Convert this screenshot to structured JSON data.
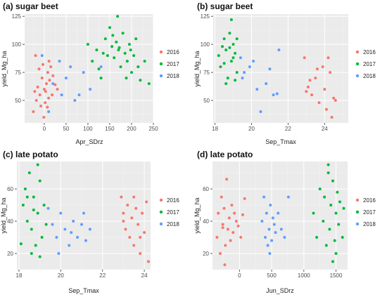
{
  "colors": {
    "2016": "#f8766d",
    "2017": "#00ba38",
    "2018": "#619cff",
    "panel_background": "#ebebeb",
    "grid_major": "#ffffff",
    "grid_minor": "#f4f4f4"
  },
  "chart_data": [
    {
      "type": "scatter",
      "title": "(a) sugar beet",
      "xlabel": "Apr_SDrz",
      "ylabel": "yield_Mg_ha",
      "xlim": [
        -45,
        250
      ],
      "ylim": [
        30,
        127
      ],
      "xticks": [
        0,
        50,
        100,
        150,
        200,
        250
      ],
      "yticks": [
        50,
        75,
        100,
        125
      ],
      "grid": true,
      "legend_position": "right",
      "legend": [
        "2016",
        "2017",
        "2018"
      ],
      "series": [
        {
          "name": "2016",
          "points": [
            [
              -20,
              90
            ],
            [
              -18,
              50
            ],
            [
              -15,
              62
            ],
            [
              -12,
              78
            ],
            [
              -10,
              55
            ],
            [
              -8,
              45
            ],
            [
              -5,
              70
            ],
            [
              -3,
              82
            ],
            [
              0,
              60
            ],
            [
              2,
              48
            ],
            [
              5,
              65
            ],
            [
              8,
              75
            ],
            [
              10,
              52
            ],
            [
              12,
              68
            ],
            [
              15,
              80
            ],
            [
              -22,
              58
            ],
            [
              18,
              55
            ],
            [
              20,
              72
            ],
            [
              25,
              64
            ],
            [
              -25,
              40
            ],
            [
              -1,
              35
            ],
            [
              30,
              60
            ],
            [
              3,
              58
            ],
            [
              7,
              44
            ],
            [
              11,
              85
            ]
          ]
        },
        {
          "name": "2017",
          "points": [
            [
              100,
              100
            ],
            [
              110,
              85
            ],
            [
              120,
              95
            ],
            [
              130,
              70
            ],
            [
              140,
              105
            ],
            [
              145,
              90
            ],
            [
              150,
              115
            ],
            [
              155,
              98
            ],
            [
              160,
              88
            ],
            [
              165,
              102
            ],
            [
              170,
              95
            ],
            [
              175,
              80
            ],
            [
              180,
              110
            ],
            [
              185,
              92
            ],
            [
              190,
              85
            ],
            [
              195,
              100
            ],
            [
              200,
              75
            ],
            [
              205,
              90
            ],
            [
              210,
              105
            ],
            [
              220,
              68
            ],
            [
              230,
              85
            ],
            [
              240,
              65
            ],
            [
              125,
              78
            ],
            [
              135,
              92
            ],
            [
              168,
              125
            ],
            [
              172,
              97
            ],
            [
              188,
              70
            ],
            [
              157,
              108
            ],
            [
              198,
              95
            ],
            [
              215,
              80
            ]
          ]
        },
        {
          "name": "2018",
          "points": [
            [
              -5,
              90
            ],
            [
              10,
              40
            ],
            [
              20,
              65
            ],
            [
              40,
              55
            ],
            [
              60,
              80
            ],
            [
              70,
              50
            ],
            [
              90,
              75
            ],
            [
              105,
              60
            ],
            [
              130,
              80
            ],
            [
              80,
              55
            ],
            [
              50,
              70
            ],
            [
              35,
              85
            ]
          ]
        }
      ]
    },
    {
      "type": "scatter",
      "title": "(b) sugar beet",
      "xlabel": "Sep_Tmax",
      "ylabel": "yield_Mg_ha",
      "xlim": [
        17.9,
        25.3
      ],
      "ylim": [
        30,
        127
      ],
      "xticks": [
        18,
        20,
        22,
        24
      ],
      "yticks": [
        50,
        75,
        100,
        125
      ],
      "grid": true,
      "legend_position": "right",
      "legend": [
        "2016",
        "2017",
        "2018"
      ],
      "series": [
        {
          "name": "2016",
          "points": [
            [
              22.9,
              88
            ],
            [
              23.1,
              62
            ],
            [
              23.3,
              55
            ],
            [
              23.5,
              70
            ],
            [
              23.7,
              48
            ],
            [
              23.9,
              80
            ],
            [
              24.0,
              60
            ],
            [
              24.1,
              42
            ],
            [
              24.3,
              75
            ],
            [
              24.5,
              52
            ],
            [
              23.2,
              68
            ],
            [
              23.6,
              78
            ],
            [
              24.2,
              88
            ],
            [
              24.4,
              35
            ],
            [
              24.6,
              50
            ],
            [
              23.0,
              58
            ]
          ]
        },
        {
          "name": "2017",
          "points": [
            [
              18.2,
              90
            ],
            [
              18.3,
              80
            ],
            [
              18.5,
              105
            ],
            [
              18.6,
              95
            ],
            [
              18.7,
              70
            ],
            [
              18.8,
              110
            ],
            [
              18.9,
              85
            ],
            [
              19.0,
              100
            ],
            [
              19.1,
              92
            ],
            [
              19.2,
              75
            ],
            [
              18.4,
              98
            ],
            [
              18.9,
              122
            ],
            [
              19.0,
              88
            ],
            [
              18.6,
              65
            ],
            [
              19.2,
              105
            ],
            [
              18.5,
              83
            ],
            [
              18.8,
              97
            ],
            [
              19.1,
              68
            ]
          ]
        },
        {
          "name": "2018",
          "points": [
            [
              19.4,
              88
            ],
            [
              19.6,
              75
            ],
            [
              19.9,
              80
            ],
            [
              20.3,
              60
            ],
            [
              20.5,
              40
            ],
            [
              20.8,
              65
            ],
            [
              21.0,
              78
            ],
            [
              21.2,
              55
            ],
            [
              21.5,
              95
            ],
            [
              19.5,
              70
            ],
            [
              20.1,
              85
            ],
            [
              21.4,
              56
            ]
          ]
        }
      ]
    },
    {
      "type": "scatter",
      "title": "(c) late potato",
      "xlabel": "Sep_Tmax",
      "ylabel": "yield_Mg_ha",
      "xlim": [
        17.9,
        24.3
      ],
      "ylim": [
        10,
        77
      ],
      "xticks": [
        18,
        20,
        22,
        24
      ],
      "yticks": [
        20,
        40,
        60
      ],
      "grid": true,
      "legend_position": "right",
      "legend": [
        "2016",
        "2017",
        "2018"
      ],
      "series": [
        {
          "name": "2016",
          "points": [
            [
              22.9,
              55
            ],
            [
              23.0,
              45
            ],
            [
              23.1,
              35
            ],
            [
              23.2,
              50
            ],
            [
              23.3,
              30
            ],
            [
              23.4,
              42
            ],
            [
              23.5,
              25
            ],
            [
              23.6,
              48
            ],
            [
              23.7,
              38
            ],
            [
              23.8,
              20
            ],
            [
              23.9,
              45
            ],
            [
              24.0,
              33
            ],
            [
              24.1,
              52
            ],
            [
              24.2,
              15
            ],
            [
              23.5,
              55
            ],
            [
              23.0,
              40
            ],
            [
              23.8,
              30
            ]
          ]
        },
        {
          "name": "2017",
          "points": [
            [
              18.1,
              26
            ],
            [
              18.2,
              50
            ],
            [
              18.3,
              60
            ],
            [
              18.4,
              40
            ],
            [
              18.5,
              70
            ],
            [
              18.6,
              35
            ],
            [
              18.7,
              55
            ],
            [
              18.8,
              25
            ],
            [
              18.9,
              45
            ],
            [
              19.0,
              65
            ],
            [
              19.1,
              30
            ],
            [
              19.2,
              50
            ],
            [
              19.3,
              38
            ],
            [
              18.6,
              20
            ],
            [
              18.9,
              75
            ],
            [
              18.4,
              55
            ],
            [
              19.0,
              18
            ],
            [
              18.7,
              47
            ]
          ]
        },
        {
          "name": "2018",
          "points": [
            [
              19.4,
              48
            ],
            [
              19.6,
              38
            ],
            [
              19.8,
              30
            ],
            [
              20.0,
              45
            ],
            [
              20.2,
              35
            ],
            [
              20.4,
              25
            ],
            [
              20.6,
              40
            ],
            [
              20.8,
              30
            ],
            [
              21.0,
              38
            ],
            [
              21.2,
              28
            ],
            [
              21.4,
              35
            ],
            [
              19.9,
              20
            ],
            [
              20.5,
              33
            ],
            [
              21.1,
              45
            ]
          ]
        }
      ]
    },
    {
      "type": "scatter",
      "title": "(d) late potato",
      "xlabel": "Jun_SDrz",
      "ylabel": "yield_Mg_ha",
      "xlim": [
        -420,
        1680
      ],
      "ylim": [
        10,
        77
      ],
      "xticks": [
        0,
        500,
        1000,
        1500
      ],
      "yticks": [
        20,
        40,
        60
      ],
      "grid": true,
      "legend_position": "right",
      "legend": [
        "2016",
        "2017",
        "2018"
      ],
      "series": [
        {
          "name": "2016",
          "points": [
            [
              -350,
              30
            ],
            [
              -330,
              45
            ],
            [
              -300,
              20
            ],
            [
              -280,
              55
            ],
            [
              -260,
              38
            ],
            [
              -240,
              48
            ],
            [
              -220,
              25
            ],
            [
              -200,
              66
            ],
            [
              -180,
              35
            ],
            [
              -160,
              42
            ],
            [
              -140,
              28
            ],
            [
              -120,
              50
            ],
            [
              -100,
              33
            ],
            [
              -80,
              45
            ],
            [
              -50,
              40
            ],
            [
              -20,
              37
            ],
            [
              20,
              30
            ],
            [
              50,
              44
            ],
            [
              80,
              54
            ],
            [
              -230,
              13
            ],
            [
              -260,
              36
            ]
          ]
        },
        {
          "name": "2018",
          "points": [
            [
              350,
              40
            ],
            [
              380,
              55
            ],
            [
              400,
              30
            ],
            [
              420,
              45
            ],
            [
              440,
              25
            ],
            [
              460,
              35
            ],
            [
              480,
              50
            ],
            [
              500,
              28
            ],
            [
              520,
              42
            ],
            [
              540,
              38
            ],
            [
              560,
              33
            ],
            [
              600,
              45
            ],
            [
              650,
              35
            ],
            [
              700,
              30
            ],
            [
              760,
              55
            ],
            [
              470,
              20
            ]
          ]
        },
        {
          "name": "2017",
          "points": [
            [
              1150,
              45
            ],
            [
              1200,
              30
            ],
            [
              1250,
              60
            ],
            [
              1300,
              40
            ],
            [
              1320,
              55
            ],
            [
              1350,
              25
            ],
            [
              1380,
              70
            ],
            [
              1400,
              35
            ],
            [
              1420,
              50
            ],
            [
              1450,
              65
            ],
            [
              1480,
              28
            ],
            [
              1500,
              45
            ],
            [
              1520,
              58
            ],
            [
              1540,
              38
            ],
            [
              1560,
              52
            ],
            [
              1600,
              30
            ],
            [
              1620,
              48
            ],
            [
              1450,
              15
            ],
            [
              1380,
              75
            ],
            [
              1500,
              20
            ]
          ]
        }
      ]
    }
  ]
}
